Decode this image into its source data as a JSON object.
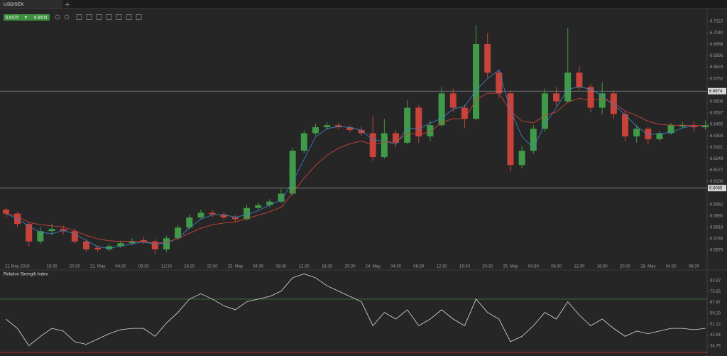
{
  "tab": {
    "symbol": "USD/SEK"
  },
  "quote": {
    "bid": 6.6475,
    "ask": 6.6503
  },
  "chart_data": [
    {
      "type": "candlestick",
      "categories": [
        null,
        "21 May 2016",
        null,
        null,
        "16:30",
        null,
        "20:30",
        null,
        "22. May",
        null,
        "04:30",
        null,
        "08:30",
        null,
        "12:30",
        null,
        "16:30",
        null,
        "20:30",
        null,
        "23. May",
        null,
        "04:30",
        null,
        "08:30",
        null,
        "12:30",
        null,
        "16:30",
        null,
        "20:30",
        null,
        "24. May",
        null,
        "04:30",
        null,
        "08:30",
        null,
        "12:30",
        null,
        "16:30",
        null,
        "20:30",
        null,
        "25. May",
        null,
        "04:30",
        null,
        "08:30",
        null,
        "12:30",
        null,
        "16:30",
        null,
        "20:30",
        null,
        "26. May",
        null,
        "04:30",
        null,
        "08:30",
        null
      ],
      "open": [
        6.593,
        6.5905,
        6.584,
        6.573,
        6.5795,
        6.5808,
        6.5795,
        6.573,
        6.569,
        6.568,
        6.57,
        6.5719,
        6.5738,
        6.573,
        6.568,
        6.575,
        6.5817,
        6.588,
        6.591,
        6.59,
        6.588,
        6.587,
        6.594,
        6.5958,
        6.598,
        6.603,
        6.63,
        6.641,
        6.6447,
        6.646,
        6.6447,
        6.643,
        6.641,
        6.626,
        6.641,
        6.635,
        6.657,
        6.639,
        6.646,
        6.666,
        6.657,
        6.65,
        6.697,
        6.679,
        6.666,
        6.621,
        6.63,
        6.6438,
        6.666,
        6.661,
        6.679,
        6.67,
        6.657,
        6.666,
        6.653,
        6.639,
        6.6438,
        6.6372,
        6.641,
        6.6452,
        6.646,
        6.6447
      ],
      "high": [
        6.5945,
        6.5915,
        6.5855,
        6.582,
        6.584,
        6.583,
        6.581,
        6.5745,
        6.5705,
        6.5715,
        6.5735,
        6.575,
        6.576,
        6.5745,
        6.5765,
        6.583,
        6.59,
        6.593,
        6.5925,
        6.5915,
        6.5895,
        6.596,
        6.5975,
        6.5995,
        6.606,
        6.632,
        6.643,
        6.647,
        6.648,
        6.6475,
        6.646,
        6.645,
        6.652,
        6.65,
        6.643,
        6.662,
        6.6585,
        6.649,
        6.67,
        6.669,
        6.659,
        6.709,
        6.704,
        6.681,
        6.668,
        6.633,
        6.646,
        6.669,
        6.67,
        6.707,
        6.683,
        6.672,
        6.673,
        6.668,
        6.655,
        6.646,
        6.645,
        6.6425,
        6.6475,
        6.648,
        6.6485,
        6.649
      ],
      "low": [
        6.588,
        6.582,
        6.57,
        6.5715,
        6.577,
        6.5775,
        6.5715,
        6.5665,
        6.5665,
        6.567,
        6.569,
        6.5705,
        6.5715,
        6.565,
        6.5665,
        6.574,
        6.5805,
        6.587,
        6.5885,
        6.5865,
        6.585,
        6.586,
        6.593,
        6.5945,
        6.597,
        6.602,
        6.6285,
        6.6395,
        6.643,
        6.6435,
        6.6415,
        6.6395,
        6.6235,
        6.625,
        6.632,
        6.634,
        6.635,
        6.636,
        6.645,
        6.654,
        6.644,
        6.649,
        6.676,
        6.663,
        6.617,
        6.619,
        6.628,
        6.642,
        6.658,
        6.66,
        6.668,
        6.654,
        6.653,
        6.65,
        6.636,
        6.635,
        6.634,
        6.636,
        6.64,
        6.644,
        6.642,
        6.643
      ],
      "close": [
        6.5905,
        6.584,
        6.573,
        6.5795,
        6.5808,
        6.5795,
        6.573,
        6.568,
        6.568,
        6.57,
        6.5719,
        6.573,
        6.573,
        6.568,
        6.575,
        6.5817,
        6.588,
        6.591,
        6.59,
        6.588,
        6.587,
        6.594,
        6.5958,
        6.598,
        6.603,
        6.63,
        6.641,
        6.6447,
        6.646,
        6.6447,
        6.643,
        6.641,
        6.626,
        6.641,
        6.635,
        6.657,
        6.639,
        6.646,
        6.666,
        6.657,
        6.65,
        6.697,
        6.679,
        6.666,
        6.621,
        6.63,
        6.6438,
        6.666,
        6.661,
        6.679,
        6.67,
        6.657,
        6.666,
        6.653,
        6.639,
        6.6438,
        6.6372,
        6.641,
        6.646,
        6.646,
        6.6447,
        6.646
      ],
      "up_color": "#3f9b48",
      "down_color": "#c8433a",
      "lines": [
        {
          "color": "#3d7fbf",
          "values": [
            6.5905,
            6.5873,
            6.5825,
            6.5788,
            6.5778,
            6.5799,
            6.5778,
            6.5735,
            6.5697,
            6.5687,
            6.57,
            6.5716,
            6.5726,
            6.5713,
            6.572,
            6.5749,
            6.5816,
            6.5869,
            6.5897,
            6.5897,
            6.5883,
            6.5897,
            6.5923,
            6.5959,
            6.5989,
            6.6103,
            6.6247,
            6.6386,
            6.6439,
            6.6451,
            6.6446,
            6.6429,
            6.6367,
            6.636,
            6.634,
            6.6443,
            6.6437,
            6.6473,
            6.6503,
            6.6563,
            6.6577,
            6.668,
            6.6753,
            6.6807,
            6.6553,
            6.639,
            6.6316,
            6.6466,
            6.6569,
            6.6687,
            6.67,
            6.6687,
            6.6643,
            6.6587,
            6.6527,
            6.6453,
            6.64,
            6.6407,
            6.6414,
            6.6443,
            6.6456,
            6.6456
          ]
        },
        {
          "color": "#c8433a",
          "values": [
            6.5905,
            6.5889,
            6.5849,
            6.5835,
            6.5828,
            6.582,
            6.5797,
            6.5768,
            6.5746,
            6.5734,
            6.573,
            6.573,
            6.573,
            6.5717,
            6.5725,
            6.5748,
            6.5781,
            6.5813,
            6.5835,
            6.5846,
            6.5852,
            6.5874,
            6.5895,
            6.5916,
            6.5945,
            6.6034,
            6.6128,
            6.6208,
            6.6271,
            6.6315,
            6.6344,
            6.6361,
            6.6336,
            6.6355,
            6.6354,
            6.6408,
            6.6403,
            6.6417,
            6.6478,
            6.6501,
            6.6501,
            6.6618,
            6.6661,
            6.6661,
            6.6548,
            6.6486,
            6.6474,
            6.6521,
            6.6543,
            6.6605,
            6.6629,
            6.6614,
            6.6626,
            6.6602,
            6.6549,
            6.6521,
            6.6484,
            6.6465,
            6.646,
            6.646,
            6.6457,
            6.6458
          ]
        }
      ],
      "price_lines": [
        6.6674,
        6.6065
      ],
      "ylim": [
        6.5595,
        6.7184
      ],
      "yticks": [
        6.7113,
        {
          "value": 6.704,
          "label": "6.7040"
        },
        6.6968,
        6.6896,
        6.6824,
        6.6752,
        6.6608,
        6.6537,
        6.6465,
        6.6393,
        6.6321,
        6.6249,
        6.6177,
        6.6106,
        6.5962,
        {
          "value": 6.589,
          "label": "6.5890"
        },
        6.5818,
        6.5746,
        6.5675
      ]
    },
    {
      "type": "line",
      "title": "Relative Strength Index",
      "color": "#dddddd",
      "values": [
        55,
        48,
        35,
        42,
        48,
        46,
        38,
        36,
        40,
        44,
        47,
        48,
        48,
        42,
        52,
        60,
        70,
        74,
        70,
        65,
        62,
        68,
        70,
        72,
        76,
        86,
        89,
        86,
        80,
        76,
        72,
        68,
        50,
        60,
        55,
        62,
        50,
        55,
        62,
        55,
        50,
        70,
        60,
        55,
        38,
        42,
        50,
        60,
        55,
        68,
        58,
        50,
        55,
        48,
        42,
        46,
        44,
        46,
        48,
        48,
        47,
        48
      ],
      "levels": [
        {
          "value": 70,
          "color": "#3e7a3e"
        },
        {
          "value": 30,
          "color": "#b03030"
        }
      ],
      "ylim": [
        27.8,
        91.3
      ],
      "yticks": [
        83.82,
        75.65,
        67.47,
        59.29,
        51.12,
        42.94,
        34.76
      ]
    }
  ]
}
